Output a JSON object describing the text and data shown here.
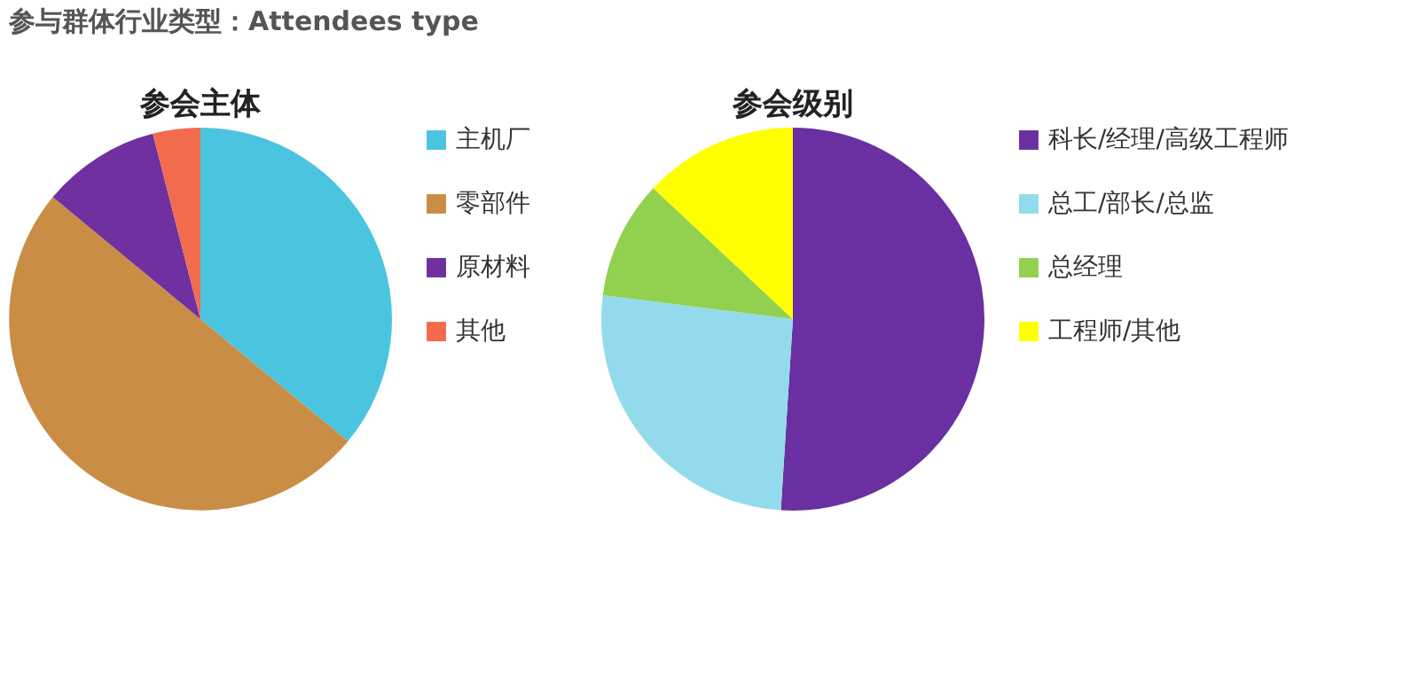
{
  "chart_data": [
    {
      "type": "pie",
      "title": "参会主体",
      "annotations": [
        "参与群体行业类型：Attendees type"
      ],
      "legend": "right",
      "categories": [
        "主机厂",
        "零部件",
        "原材料",
        "其他"
      ],
      "values": [
        36,
        50,
        10,
        4
      ],
      "colors": [
        "#4bc4df",
        "#c98d45",
        "#7030a0",
        "#f26b4d"
      ]
    },
    {
      "type": "pie",
      "title": "参会级别",
      "legend": "right",
      "categories": [
        "科长/经理/高级工程师",
        "总工/部长/总监",
        "总经理",
        "工程师/其他"
      ],
      "values": [
        51,
        26,
        10,
        13
      ],
      "colors": [
        "#6a2fa0",
        "#93dbec",
        "#92d050",
        "#ffff00"
      ]
    }
  ]
}
